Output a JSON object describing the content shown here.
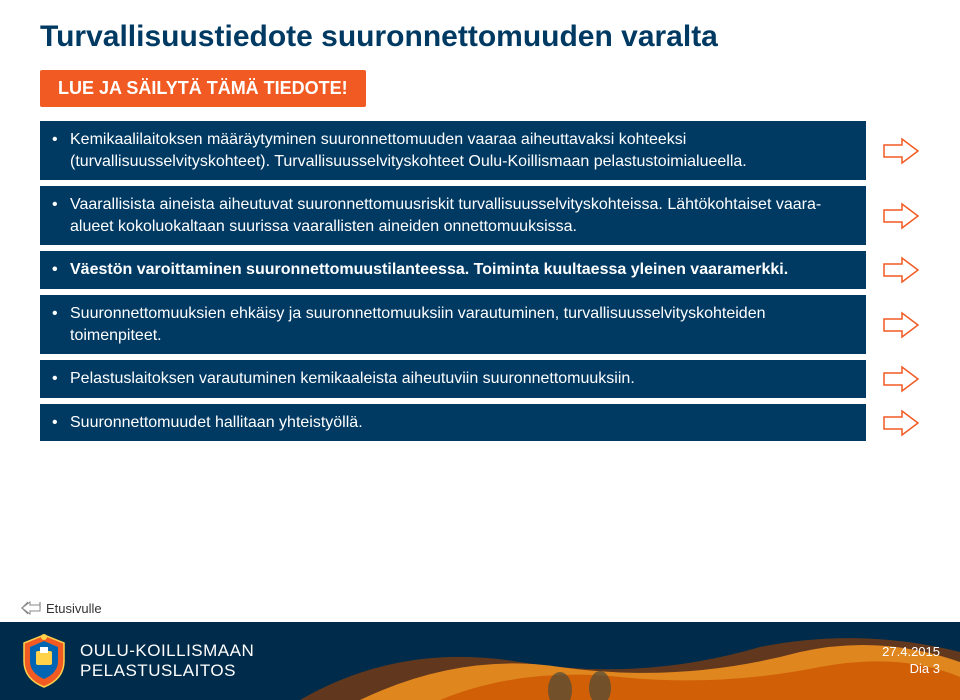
{
  "colors": {
    "title": "#003a63",
    "callout_bg": "#f15a22",
    "item_bg": "#003a63",
    "item_text": "#ffffff",
    "arrow_fill": "#ffffff",
    "arrow_stroke": "#f15a22",
    "back_arrow_stroke": "#888888",
    "footer_overlay": "#003a63",
    "footer_fire1": "#f7941e",
    "footer_fire2": "#cc5500"
  },
  "title": "Turvallisuustiedote suuronnettomuuden varalta",
  "callout": "LUE JA SÄILYTÄ TÄMÄ TIEDOTE!",
  "items": [
    {
      "text": "Kemikaalilaitoksen määräytyminen suuronnettomuuden vaaraa aiheuttavaksi kohteeksi (turvallisuusselvityskohteet). Turvallisuusselvityskohteet Oulu-Koillismaan pelastustoimialueella.",
      "bold": false
    },
    {
      "text": "Vaarallisista aineista aiheutuvat suuronnettomuusriskit turvallisuusselvityskohteissa. Lähtökohtaiset vaara-alueet kokoluokaltaan suurissa vaarallisten aineiden onnettomuuksissa.",
      "bold": false
    },
    {
      "text": "Väestön varoittaminen suuronnettomuustilanteessa. Toiminta kuultaessa yleinen vaaramerkki.",
      "bold": true
    },
    {
      "text": "Suuronnettomuuksien ehkäisy ja suuronnettomuuksiin varautuminen, turvallisuusselvityskohteiden toimenpiteet.",
      "bold": false
    },
    {
      "text": "Pelastuslaitoksen varautuminen kemikaaleista aiheutuviin suuronnettomuuksiin.",
      "bold": false
    },
    {
      "text": "Suuronnettomuudet hallitaan yhteistyöllä.",
      "bold": false
    }
  ],
  "back_link": "Etusivulle",
  "footer": {
    "org_top": "OULU-KOILLISMAAN",
    "org_bottom": "PELASTUSLAITOS",
    "date": "27.4.2015",
    "page": "Dia 3"
  }
}
